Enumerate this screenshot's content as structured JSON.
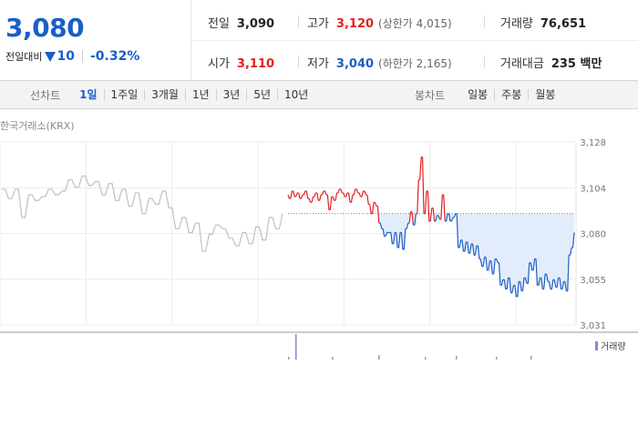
{
  "quote": {
    "current_price": "3,080",
    "change_label": "전일대비",
    "change_value": "10",
    "change_rate": "-0.32%"
  },
  "stats": {
    "prev_close": {
      "label": "전일",
      "value": "3,090"
    },
    "open": {
      "label": "시가",
      "value": "3,110"
    },
    "high": {
      "label": "고가",
      "value": "3,120",
      "limit": "(상한가 4,015)"
    },
    "low": {
      "label": "저가",
      "value": "3,040",
      "limit": "(하한가 2,165)"
    },
    "volume": {
      "label": "거래량",
      "value": "76,651"
    },
    "trade_amount": {
      "label": "거래대금",
      "value": "235 백만"
    }
  },
  "period_tabs": {
    "label": "선차트",
    "items": [
      "1일",
      "1주일",
      "3개월",
      "1년",
      "3년",
      "5년",
      "10년"
    ],
    "active": "1일"
  },
  "candle_tabs": {
    "label": "봉차트",
    "items": [
      "일봉",
      "주봉",
      "월봉"
    ]
  },
  "source_label": "한국거래소(KRX)",
  "volume_legend": "거래량",
  "colors": {
    "accent_blue": "#1a5ec7",
    "up_red": "#e32020",
    "prev_line_gray": "#c0c0c0",
    "fill_blue": "#e3ecfa",
    "volume_purple": "#9c7fd6"
  },
  "chart_data": {
    "type": "line",
    "y_ticks": [
      "3,128",
      "3,104",
      "3,080",
      "3,055",
      "3,031"
    ],
    "ylim": [
      3031,
      3128
    ],
    "reference_price": 3090,
    "series": [
      {
        "values": [
          3100,
          3098,
          3098,
          3102,
          3102,
          3099,
          3099,
          3101,
          3101,
          3098,
          3098,
          3100,
          3100,
          3102,
          3102,
          3098,
          3098,
          3096,
          3096,
          3099,
          3099,
          3101,
          3101,
          3097,
          3097,
          3100,
          3100,
          3102,
          3102,
          3100,
          3100,
          3092,
          3092,
          3099,
          3099,
          3097,
          3097,
          3101,
          3101,
          3103,
          3103,
          3101,
          3101,
          3099,
          3099,
          3101,
          3101,
          3096,
          3096,
          3100,
          3100,
          3103,
          3103,
          3101,
          3101,
          3099,
          3099,
          3102,
          3102,
          3100,
          3100,
          3095,
          3095,
          3090,
          3090,
          3096,
          3096,
          3094,
          3094,
          3085,
          3085,
          3082,
          3082,
          3078,
          3078,
          3080,
          3080,
          3080,
          3080,
          3074,
          3074,
          3080,
          3080,
          3072,
          3072,
          3080,
          3080,
          3071,
          3071,
          3082,
          3082,
          3085,
          3085,
          3091,
          3091,
          3084,
          3084,
          3090,
          3090,
          3108,
          3108,
          3120,
          3120,
          3090,
          3090,
          3102,
          3102,
          3086,
          3086,
          3093,
          3093,
          3086,
          3086,
          3089,
          3089,
          3087,
          3087,
          3100,
          3100,
          3086,
          3086,
          3090,
          3090,
          3086,
          3086,
          3088,
          3088,
          3090,
          3090,
          3072,
          3072,
          3076,
          3076,
          3070,
          3070,
          3075,
          3075,
          3069,
          3069,
          3074,
          3074,
          3068,
          3068,
          3073,
          3073,
          3066,
          3066,
          3062,
          3062,
          3067,
          3067,
          3060,
          3060,
          3065,
          3065,
          3058,
          3058,
          3066,
          3066,
          3064,
          3064,
          3052,
          3052,
          3055,
          3055,
          3050,
          3050,
          3056,
          3056,
          3048,
          3048,
          3052,
          3052,
          3046,
          3046,
          3054,
          3054,
          3049,
          3049,
          3056,
          3056,
          3053,
          3053,
          3064,
          3064,
          3060,
          3060,
          3066,
          3066,
          3052,
          3052,
          3056,
          3056,
          3050,
          3050,
          3058,
          3058,
          3054,
          3054,
          3050,
          3050,
          3055,
          3055,
          3051,
          3051,
          3056,
          3056,
          3050,
          3050,
          3054,
          3054,
          3049,
          3049,
          3068,
          3068,
          3072,
          3072,
          3080
        ],
        "color_rule": "red above reference price, blue below",
        "fill_below_reference": true
      }
    ],
    "prev_day_series": {
      "color": "#c0c0c0",
      "values": [
        3103,
        3103,
        3098,
        3098,
        3103,
        3103,
        3088,
        3088,
        3100,
        3100,
        3097,
        3097,
        3099,
        3099,
        3103,
        3103,
        3100,
        3100,
        3102,
        3102,
        3108,
        3108,
        3104,
        3104,
        3110,
        3110,
        3105,
        3105,
        3107,
        3107,
        3100,
        3100,
        3106,
        3106,
        3097,
        3097,
        3103,
        3103,
        3094,
        3094,
        3101,
        3101,
        3090,
        3090,
        3098,
        3098,
        3095,
        3095,
        3102,
        3102,
        3093,
        3093,
        3082,
        3082,
        3088,
        3088,
        3080,
        3080,
        3085,
        3085,
        3070,
        3070,
        3079,
        3079,
        3084,
        3084,
        3082,
        3082,
        3077,
        3077,
        3073,
        3073,
        3080,
        3080,
        3074,
        3074,
        3083,
        3083,
        3076,
        3076,
        3088,
        3088,
        3082,
        3082,
        3090
      ]
    },
    "volume": {
      "bars": [
        3,
        28,
        3,
        5,
        3,
        4,
        3,
        4
      ]
    },
    "grid": true
  }
}
